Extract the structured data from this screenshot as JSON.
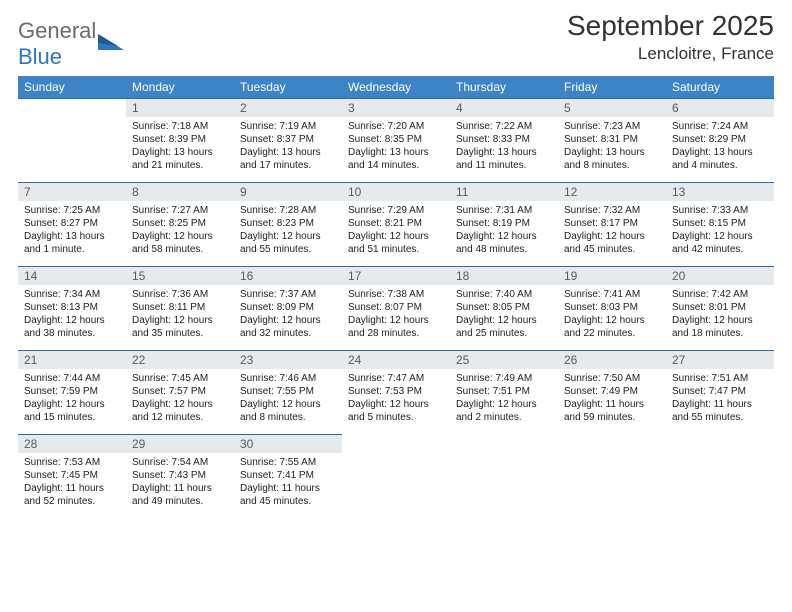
{
  "logo": {
    "word1": "General",
    "word2": "Blue"
  },
  "title": "September 2025",
  "location": "Lencloitre, France",
  "colors": {
    "header_bg": "#3d84c6",
    "header_text": "#ffffff",
    "daynum_bg": "#e7eaec",
    "daynum_text": "#5a5a5a",
    "body_text": "#222222",
    "row_border": "#2a6aa8",
    "logo_gray": "#6b6b6b",
    "logo_blue": "#2a77c0"
  },
  "weekdays": [
    "Sunday",
    "Monday",
    "Tuesday",
    "Wednesday",
    "Thursday",
    "Friday",
    "Saturday"
  ],
  "weeks": [
    [
      {
        "empty": true
      },
      {
        "num": "1",
        "sunrise": "Sunrise: 7:18 AM",
        "sunset": "Sunset: 8:39 PM",
        "daylight1": "Daylight: 13 hours",
        "daylight2": "and 21 minutes."
      },
      {
        "num": "2",
        "sunrise": "Sunrise: 7:19 AM",
        "sunset": "Sunset: 8:37 PM",
        "daylight1": "Daylight: 13 hours",
        "daylight2": "and 17 minutes."
      },
      {
        "num": "3",
        "sunrise": "Sunrise: 7:20 AM",
        "sunset": "Sunset: 8:35 PM",
        "daylight1": "Daylight: 13 hours",
        "daylight2": "and 14 minutes."
      },
      {
        "num": "4",
        "sunrise": "Sunrise: 7:22 AM",
        "sunset": "Sunset: 8:33 PM",
        "daylight1": "Daylight: 13 hours",
        "daylight2": "and 11 minutes."
      },
      {
        "num": "5",
        "sunrise": "Sunrise: 7:23 AM",
        "sunset": "Sunset: 8:31 PM",
        "daylight1": "Daylight: 13 hours",
        "daylight2": "and 8 minutes."
      },
      {
        "num": "6",
        "sunrise": "Sunrise: 7:24 AM",
        "sunset": "Sunset: 8:29 PM",
        "daylight1": "Daylight: 13 hours",
        "daylight2": "and 4 minutes."
      }
    ],
    [
      {
        "num": "7",
        "sunrise": "Sunrise: 7:25 AM",
        "sunset": "Sunset: 8:27 PM",
        "daylight1": "Daylight: 13 hours",
        "daylight2": "and 1 minute."
      },
      {
        "num": "8",
        "sunrise": "Sunrise: 7:27 AM",
        "sunset": "Sunset: 8:25 PM",
        "daylight1": "Daylight: 12 hours",
        "daylight2": "and 58 minutes."
      },
      {
        "num": "9",
        "sunrise": "Sunrise: 7:28 AM",
        "sunset": "Sunset: 8:23 PM",
        "daylight1": "Daylight: 12 hours",
        "daylight2": "and 55 minutes."
      },
      {
        "num": "10",
        "sunrise": "Sunrise: 7:29 AM",
        "sunset": "Sunset: 8:21 PM",
        "daylight1": "Daylight: 12 hours",
        "daylight2": "and 51 minutes."
      },
      {
        "num": "11",
        "sunrise": "Sunrise: 7:31 AM",
        "sunset": "Sunset: 8:19 PM",
        "daylight1": "Daylight: 12 hours",
        "daylight2": "and 48 minutes."
      },
      {
        "num": "12",
        "sunrise": "Sunrise: 7:32 AM",
        "sunset": "Sunset: 8:17 PM",
        "daylight1": "Daylight: 12 hours",
        "daylight2": "and 45 minutes."
      },
      {
        "num": "13",
        "sunrise": "Sunrise: 7:33 AM",
        "sunset": "Sunset: 8:15 PM",
        "daylight1": "Daylight: 12 hours",
        "daylight2": "and 42 minutes."
      }
    ],
    [
      {
        "num": "14",
        "sunrise": "Sunrise: 7:34 AM",
        "sunset": "Sunset: 8:13 PM",
        "daylight1": "Daylight: 12 hours",
        "daylight2": "and 38 minutes."
      },
      {
        "num": "15",
        "sunrise": "Sunrise: 7:36 AM",
        "sunset": "Sunset: 8:11 PM",
        "daylight1": "Daylight: 12 hours",
        "daylight2": "and 35 minutes."
      },
      {
        "num": "16",
        "sunrise": "Sunrise: 7:37 AM",
        "sunset": "Sunset: 8:09 PM",
        "daylight1": "Daylight: 12 hours",
        "daylight2": "and 32 minutes."
      },
      {
        "num": "17",
        "sunrise": "Sunrise: 7:38 AM",
        "sunset": "Sunset: 8:07 PM",
        "daylight1": "Daylight: 12 hours",
        "daylight2": "and 28 minutes."
      },
      {
        "num": "18",
        "sunrise": "Sunrise: 7:40 AM",
        "sunset": "Sunset: 8:05 PM",
        "daylight1": "Daylight: 12 hours",
        "daylight2": "and 25 minutes."
      },
      {
        "num": "19",
        "sunrise": "Sunrise: 7:41 AM",
        "sunset": "Sunset: 8:03 PM",
        "daylight1": "Daylight: 12 hours",
        "daylight2": "and 22 minutes."
      },
      {
        "num": "20",
        "sunrise": "Sunrise: 7:42 AM",
        "sunset": "Sunset: 8:01 PM",
        "daylight1": "Daylight: 12 hours",
        "daylight2": "and 18 minutes."
      }
    ],
    [
      {
        "num": "21",
        "sunrise": "Sunrise: 7:44 AM",
        "sunset": "Sunset: 7:59 PM",
        "daylight1": "Daylight: 12 hours",
        "daylight2": "and 15 minutes."
      },
      {
        "num": "22",
        "sunrise": "Sunrise: 7:45 AM",
        "sunset": "Sunset: 7:57 PM",
        "daylight1": "Daylight: 12 hours",
        "daylight2": "and 12 minutes."
      },
      {
        "num": "23",
        "sunrise": "Sunrise: 7:46 AM",
        "sunset": "Sunset: 7:55 PM",
        "daylight1": "Daylight: 12 hours",
        "daylight2": "and 8 minutes."
      },
      {
        "num": "24",
        "sunrise": "Sunrise: 7:47 AM",
        "sunset": "Sunset: 7:53 PM",
        "daylight1": "Daylight: 12 hours",
        "daylight2": "and 5 minutes."
      },
      {
        "num": "25",
        "sunrise": "Sunrise: 7:49 AM",
        "sunset": "Sunset: 7:51 PM",
        "daylight1": "Daylight: 12 hours",
        "daylight2": "and 2 minutes."
      },
      {
        "num": "26",
        "sunrise": "Sunrise: 7:50 AM",
        "sunset": "Sunset: 7:49 PM",
        "daylight1": "Daylight: 11 hours",
        "daylight2": "and 59 minutes."
      },
      {
        "num": "27",
        "sunrise": "Sunrise: 7:51 AM",
        "sunset": "Sunset: 7:47 PM",
        "daylight1": "Daylight: 11 hours",
        "daylight2": "and 55 minutes."
      }
    ],
    [
      {
        "num": "28",
        "sunrise": "Sunrise: 7:53 AM",
        "sunset": "Sunset: 7:45 PM",
        "daylight1": "Daylight: 11 hours",
        "daylight2": "and 52 minutes."
      },
      {
        "num": "29",
        "sunrise": "Sunrise: 7:54 AM",
        "sunset": "Sunset: 7:43 PM",
        "daylight1": "Daylight: 11 hours",
        "daylight2": "and 49 minutes."
      },
      {
        "num": "30",
        "sunrise": "Sunrise: 7:55 AM",
        "sunset": "Sunset: 7:41 PM",
        "daylight1": "Daylight: 11 hours",
        "daylight2": "and 45 minutes."
      },
      {
        "empty": true
      },
      {
        "empty": true
      },
      {
        "empty": true
      },
      {
        "empty": true
      }
    ]
  ]
}
